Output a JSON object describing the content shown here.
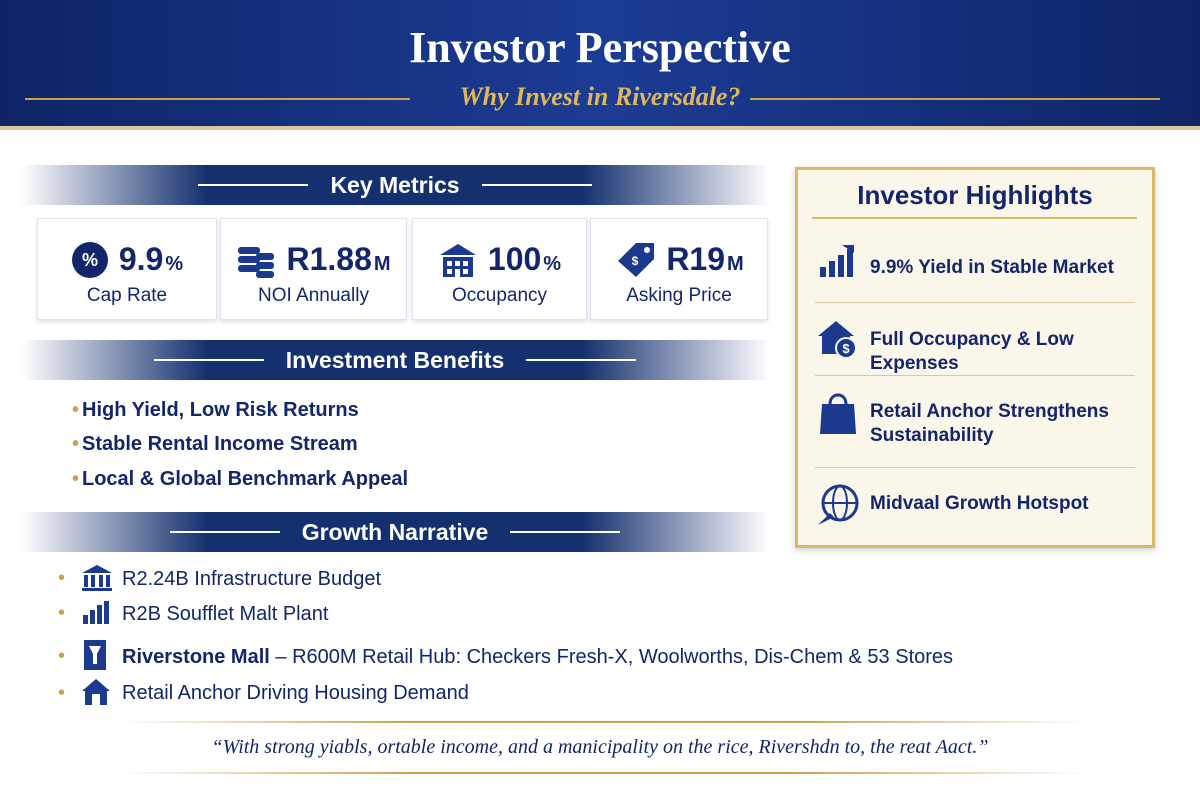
{
  "header": {
    "title": "Investor Perspective",
    "subtitle": "Why Invest in Riversdale?"
  },
  "key_metrics": {
    "heading": "Key Metrics",
    "items": [
      {
        "value": "9.9",
        "unit": "%",
        "label": "Cap Rate"
      },
      {
        "value": "R1.88",
        "unit": "M",
        "label": "NOI Annually"
      },
      {
        "value": "100",
        "unit": "%",
        "label": "Occupancy"
      },
      {
        "value": "R19",
        "unit": "M",
        "label": "Asking Price"
      }
    ]
  },
  "benefits": {
    "heading": "Investment Benefits",
    "items": [
      "High Yield, Low Risk Returns",
      "Stable Rental Income Stream",
      "Local & Global Benchmark Appeal"
    ]
  },
  "growth": {
    "heading": "Growth Narrative",
    "items": [
      {
        "text": "R2.24B Infrastructure Budget"
      },
      {
        "text": "R2B Soufflet Malt Plant"
      },
      {
        "bold": "Riverstone Mall",
        "text": " – R600M Retail Hub: Checkers Fresh-X, Woolworths, Dis-Chem & 53 Stores"
      },
      {
        "text": "Retail Anchor Driving Housing Demand"
      }
    ]
  },
  "highlights": {
    "heading": "Investor Highlights",
    "items": [
      "9.9% Yield in Stable Market",
      "Full Occupancy & Low Expenses",
      "Retail Anchor Strengthens Sustainability",
      "Midvaal Growth Hotspot"
    ]
  },
  "quote": "“With strong yiabls, ortable income, and a manicipality on the rice, Rivershdn to, the reat Aact.”"
}
